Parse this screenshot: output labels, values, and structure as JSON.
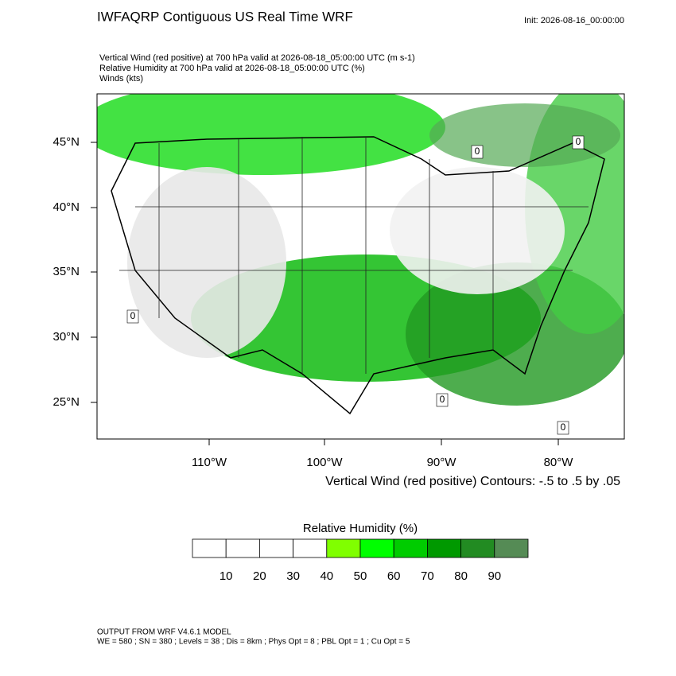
{
  "header": {
    "title": "IWFAQRP Contiguous US Real Time WRF",
    "init": "Init: 2026-08-16_00:00:00"
  },
  "subtitle": [
    "Vertical Wind (red positive) at 700 hPa valid at 2026-08-18_05:00:00 UTC   (m s-1)",
    "Relative Humidity at 700 hPa valid at 2026-08-18_05:00:00 UTC   (%)",
    "Winds   (kts)"
  ],
  "map": {
    "lat_labels": [
      "45°N",
      "40°N",
      "35°N",
      "30°N",
      "25°N"
    ],
    "lon_labels": [
      "110°W",
      "100°W",
      "90°W",
      "80°W"
    ],
    "contour_labels": [
      "0",
      "0",
      "0",
      "0",
      "0"
    ],
    "contour_note": "Vertical Wind (red positive) Contours: -.5 to .5 by .05"
  },
  "colorbar": {
    "title": "Relative Humidity  (%)",
    "labels": [
      "10",
      "20",
      "30",
      "40",
      "50",
      "60",
      "70",
      "80",
      "90"
    ],
    "colors": [
      "#ffffff",
      "#ffffff",
      "#ffffff",
      "#ffffff",
      "#80ff00",
      "#00ff00",
      "#00cc00",
      "#009900",
      "#228b22",
      "#558b55"
    ]
  },
  "footer": [
    "OUTPUT FROM WRF V4.6.1 MODEL",
    "WE = 580 ; SN = 380 ; Levels = 38 ; Dis = 8km ; Phys Opt = 8 ; PBL Opt = 1 ; Cu Opt = 5"
  ]
}
